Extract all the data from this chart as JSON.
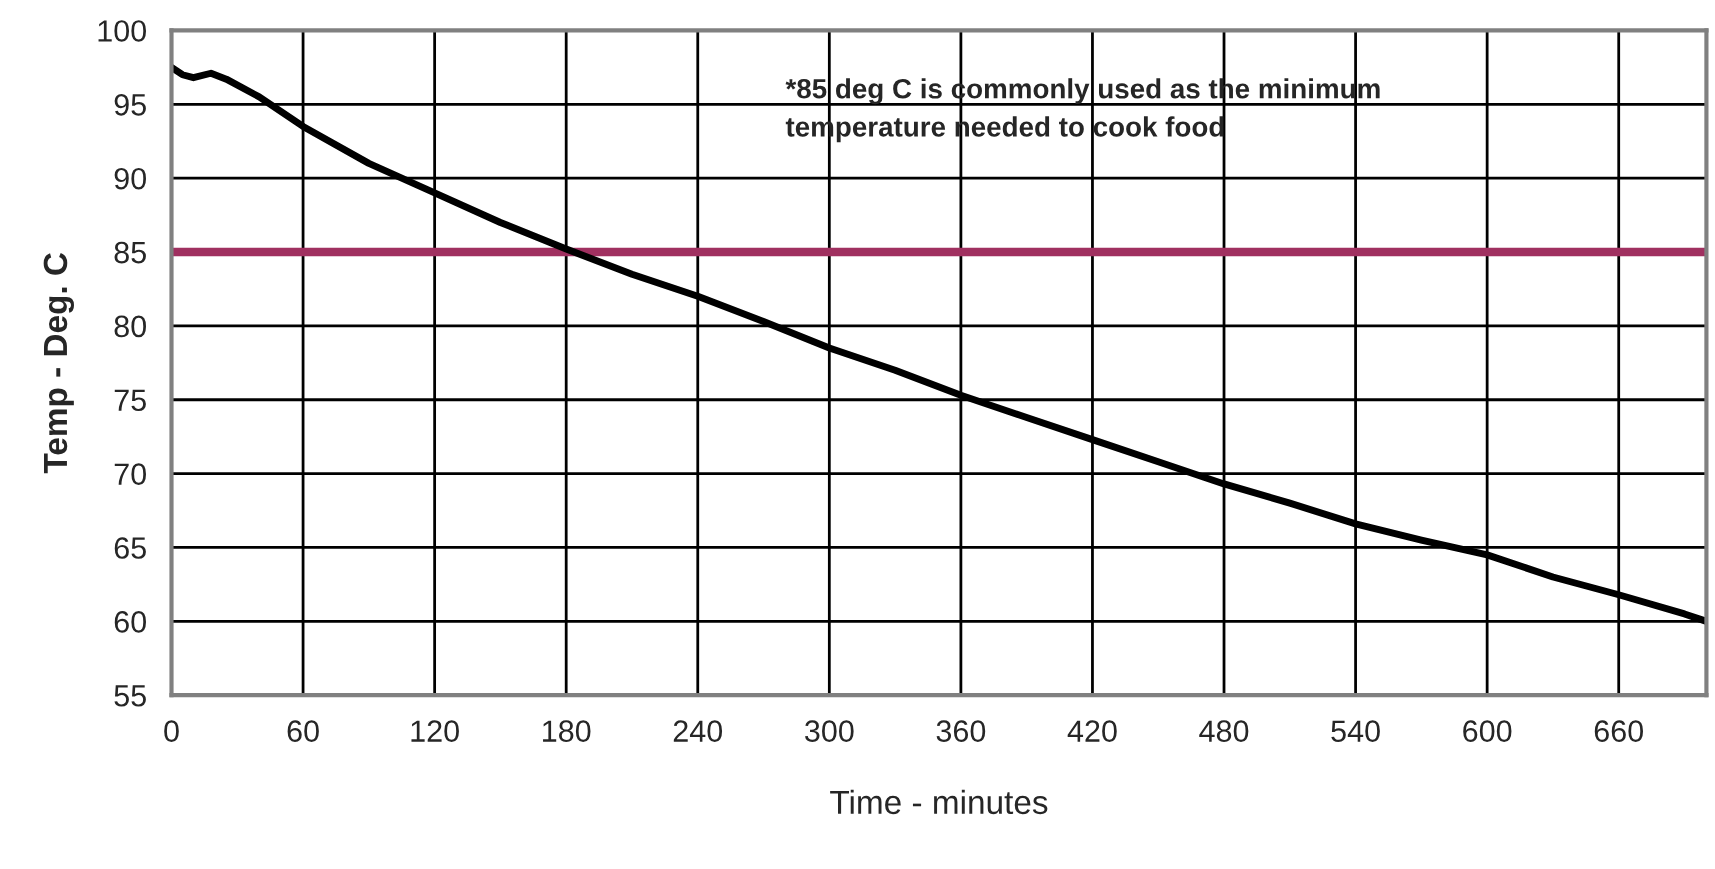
{
  "chart_data": {
    "type": "line",
    "xlabel": "Time - minutes",
    "ylabel": "Temp - Deg. C",
    "x": [
      0,
      5,
      10,
      18,
      25,
      40,
      60,
      90,
      120,
      150,
      180,
      210,
      240,
      270,
      300,
      330,
      360,
      390,
      420,
      450,
      480,
      510,
      540,
      570,
      600,
      630,
      660,
      690,
      700
    ],
    "series": [
      {
        "color": "#000000",
        "values": [
          97.5,
          97,
          96.8,
          97.1,
          96.7,
          95.5,
          93.5,
          91,
          89,
          87,
          85.2,
          83.5,
          82,
          80.3,
          78.5,
          77,
          75.3,
          73.8,
          72.3,
          70.8,
          69.3,
          68,
          66.6,
          65.5,
          64.5,
          63,
          61.8,
          60.5,
          60
        ]
      }
    ],
    "xlim": [
      0,
      700
    ],
    "xticks": [
      0,
      60,
      120,
      180,
      240,
      300,
      360,
      420,
      480,
      540,
      600,
      660
    ],
    "ylim": [
      55,
      100
    ],
    "yticks": [
      55,
      60,
      65,
      70,
      75,
      80,
      85,
      90,
      95,
      100
    ],
    "ref_lines": [
      {
        "axis": "y",
        "value": 85,
        "color": "#a03060"
      }
    ],
    "annotations": [
      "*85 deg C is commonly used as the minimum\ntemperature needed to cook food"
    ],
    "grid": true,
    "marker": "none",
    "line_style": "solid",
    "legend": false
  }
}
